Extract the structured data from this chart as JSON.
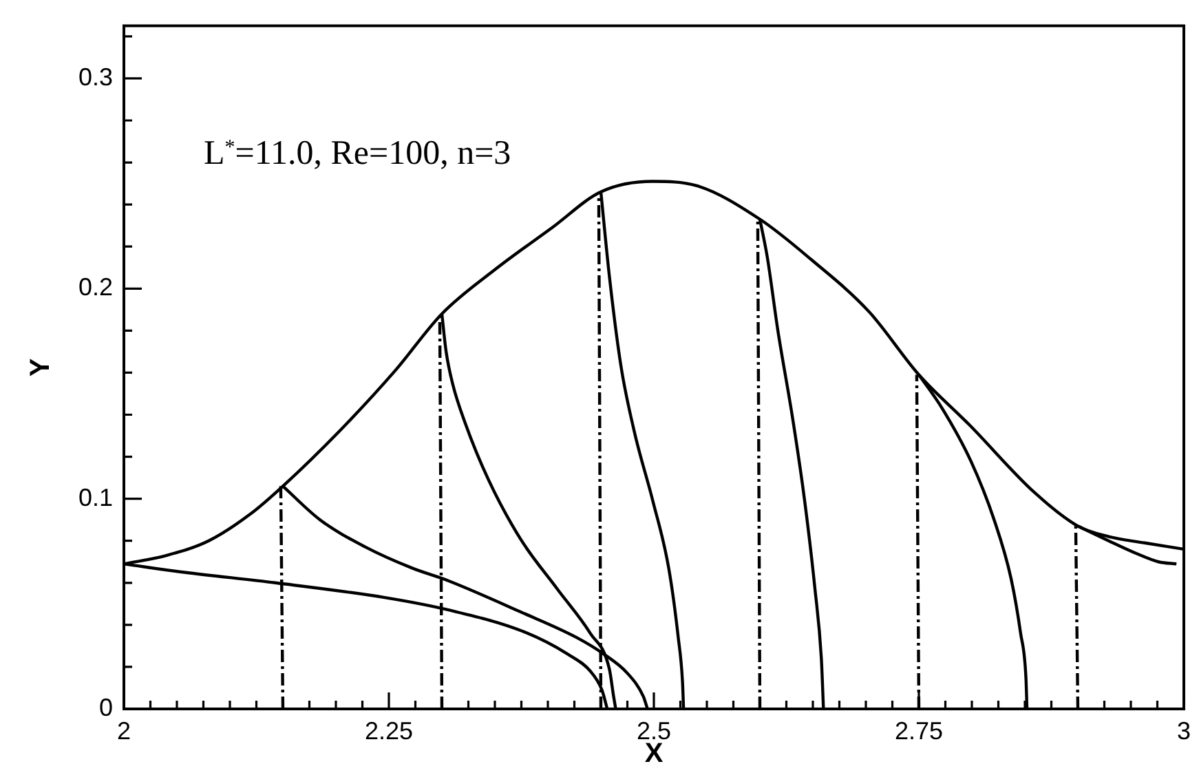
{
  "chart_data": {
    "type": "line",
    "xlabel": "X",
    "ylabel": "Y",
    "annotations": [
      "L$^{*}$=11.0, Re=100, n=3"
    ],
    "xlim": [
      2,
      3
    ],
    "ylim": [
      0,
      0.325
    ],
    "xticks": [
      2,
      {
        "value": 2.025,
        "label": null
      },
      {
        "value": 2.05,
        "label": null
      },
      {
        "value": 2.075,
        "label": null
      },
      {
        "value": 2.1,
        "label": null
      },
      {
        "value": 2.125,
        "label": null
      },
      {
        "value": 2.15,
        "label": null
      },
      {
        "value": 2.175,
        "label": null
      },
      {
        "value": 2.2,
        "label": null
      },
      {
        "value": 2.225,
        "label": null
      },
      2.25,
      {
        "value": 2.275,
        "label": null
      },
      {
        "value": 2.3,
        "label": null
      },
      {
        "value": 2.325,
        "label": null
      },
      {
        "value": 2.35,
        "label": null
      },
      {
        "value": 2.375,
        "label": null
      },
      {
        "value": 2.4,
        "label": null
      },
      {
        "value": 2.425,
        "label": null
      },
      {
        "value": 2.45,
        "label": null
      },
      {
        "value": 2.475,
        "label": null
      },
      2.5,
      {
        "value": 2.525,
        "label": null
      },
      {
        "value": 2.55,
        "label": null
      },
      {
        "value": 2.575,
        "label": null
      },
      {
        "value": 2.6,
        "label": null
      },
      {
        "value": 2.625,
        "label": null
      },
      {
        "value": 2.65,
        "label": null
      },
      {
        "value": 2.675,
        "label": null
      },
      {
        "value": 2.7,
        "label": null
      },
      {
        "value": 2.725,
        "label": null
      },
      2.75,
      {
        "value": 2.775,
        "label": null
      },
      {
        "value": 2.8,
        "label": null
      },
      {
        "value": 2.825,
        "label": null
      },
      {
        "value": 2.85,
        "label": null
      },
      {
        "value": 2.875,
        "label": null
      },
      {
        "value": 2.9,
        "label": null
      },
      {
        "value": 2.925,
        "label": null
      },
      {
        "value": 2.95,
        "label": null
      },
      {
        "value": 2.975,
        "label": null
      },
      3
    ],
    "yticks": [
      0,
      {
        "value": 0.02,
        "label": null
      },
      {
        "value": 0.04,
        "label": null
      },
      {
        "value": 0.06,
        "label": null
      },
      {
        "value": 0.08,
        "label": null
      },
      0.1,
      {
        "value": 0.12,
        "label": null
      },
      {
        "value": 0.14,
        "label": null
      },
      {
        "value": 0.16,
        "label": null
      },
      {
        "value": 0.18,
        "label": null
      },
      0.2,
      {
        "value": 0.22,
        "label": null
      },
      {
        "value": 0.24,
        "label": null
      },
      {
        "value": 0.26,
        "label": null
      },
      {
        "value": 0.28,
        "label": null
      },
      0.3,
      {
        "value": 0.32,
        "label": null
      }
    ],
    "series": [
      {
        "color": "#000000",
        "x": [
          2,
          2.04,
          2.08,
          2.12,
          2.15,
          2.203,
          2.256,
          2.3,
          2.35,
          2.404,
          2.45,
          2.499,
          2.54,
          2.6,
          2.648,
          2.703,
          2.75,
          2.798,
          2.859,
          2.9,
          2.929,
          2.963,
          3
        ],
        "values": [
          0.069,
          0.073,
          0.08,
          0.093,
          0.106,
          0.132,
          0.161,
          0.188,
          0.209,
          0.229,
          0.246,
          0.251,
          0.249,
          0.233,
          0.214,
          0.189,
          0.159,
          0.135,
          0.103,
          0.087,
          0.082,
          0.079,
          0.076
        ]
      },
      {
        "color": "#000000",
        "x": [
          2,
          2.057,
          2.143,
          2.246,
          2.307,
          2.376,
          2.419,
          2.44,
          2.451,
          2.456
        ],
        "values": [
          0.069,
          0.065,
          0.06,
          0.053,
          0.047,
          0.037,
          0.026,
          0.018,
          0.009,
          0
        ]
      },
      {
        "color": "#000000",
        "x": [
          2.15,
          2.185,
          2.228,
          2.272,
          2.306,
          2.375,
          2.427,
          2.453,
          2.475,
          2.49,
          2.494
        ],
        "values": [
          0.106,
          0.09,
          0.077,
          0.067,
          0.061,
          0.046,
          0.034,
          0.026,
          0.017,
          0.006,
          0
        ]
      },
      {
        "color": "#000000",
        "x": [
          2.3,
          2.304,
          2.31,
          2.322,
          2.344,
          2.374,
          2.409,
          2.44,
          2.458,
          2.462,
          2.464
        ],
        "values": [
          0.188,
          0.17,
          0.155,
          0.136,
          0.109,
          0.081,
          0.057,
          0.036,
          0.019,
          0.006,
          0
        ]
      },
      {
        "color": "#000000",
        "x": [
          2.45,
          2.458,
          2.469,
          2.482,
          2.499,
          2.514,
          2.523,
          2.527,
          2.528
        ],
        "values": [
          0.246,
          0.206,
          0.163,
          0.131,
          0.099,
          0.067,
          0.034,
          0.013,
          0
        ]
      },
      {
        "color": "#000000",
        "x": [
          2.6,
          2.607,
          2.617,
          2.631,
          2.642,
          2.652,
          2.658,
          2.66
        ],
        "values": [
          0.233,
          0.215,
          0.18,
          0.138,
          0.1,
          0.057,
          0.024,
          0
        ]
      },
      {
        "color": "#000000",
        "x": [
          2.75,
          2.772,
          2.799,
          2.821,
          2.837,
          2.846,
          2.851,
          2.852
        ],
        "values": [
          0.159,
          0.143,
          0.118,
          0.09,
          0.062,
          0.036,
          0.015,
          0
        ]
      },
      {
        "color": "#000000",
        "x": [
          2.9,
          2.929,
          2.955,
          2.976,
          2.993
        ],
        "values": [
          0.087,
          0.08,
          0.074,
          0.07,
          0.069
        ]
      },
      {
        "color": "#000000",
        "line_style": "dashed",
        "x": [
          2.15,
          2.148
        ],
        "values": [
          0,
          0.106
        ]
      },
      {
        "color": "#000000",
        "line_style": "dashed",
        "x": [
          2.3,
          2.298
        ],
        "values": [
          0,
          0.188
        ]
      },
      {
        "color": "#000000",
        "line_style": "dashed",
        "x": [
          2.45,
          2.448
        ],
        "values": [
          0,
          0.246
        ]
      },
      {
        "color": "#000000",
        "line_style": "dashed",
        "x": [
          2.6,
          2.598
        ],
        "values": [
          0,
          0.233
        ]
      },
      {
        "color": "#000000",
        "line_style": "dashed",
        "x": [
          2.75,
          2.748
        ],
        "values": [
          0,
          0.159
        ]
      },
      {
        "color": "#000000",
        "line_style": "dashed",
        "x": [
          2.9,
          2.898
        ],
        "values": [
          0,
          0.087
        ]
      }
    ]
  }
}
